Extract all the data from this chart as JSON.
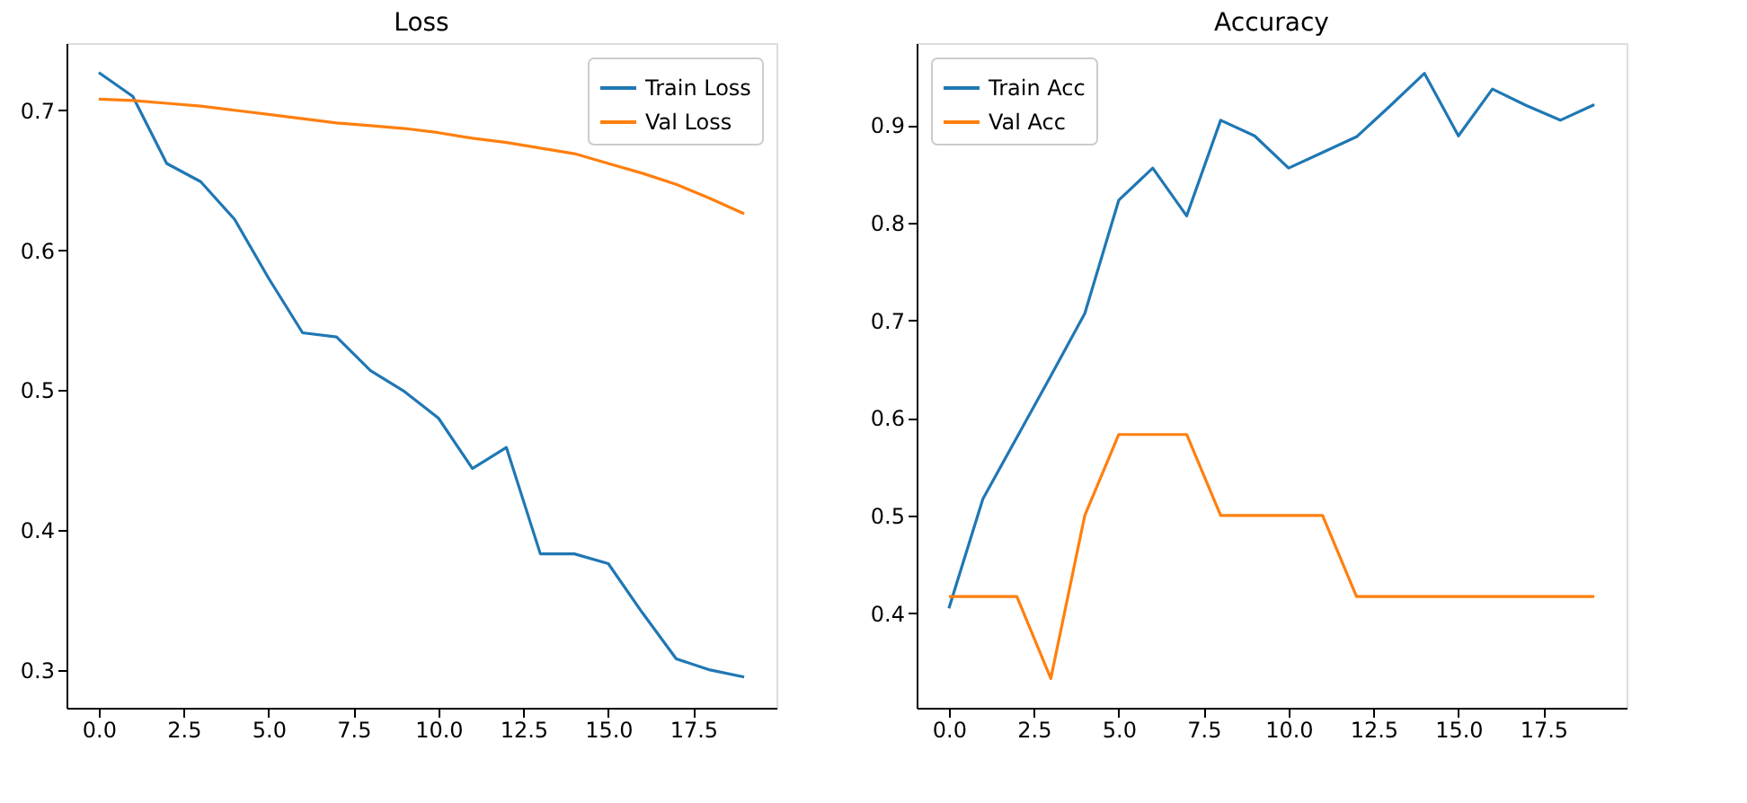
{
  "chart_data": [
    {
      "type": "line",
      "title": "Loss",
      "x": [
        0,
        1,
        2,
        3,
        4,
        5,
        6,
        7,
        8,
        9,
        10,
        11,
        12,
        13,
        14,
        15,
        16,
        17,
        18,
        19
      ],
      "series": [
        {
          "name": "Train Loss",
          "color": "#1f77b4",
          "values": [
            0.727,
            0.71,
            0.662,
            0.649,
            0.622,
            0.58,
            0.541,
            0.538,
            0.514,
            0.499,
            0.48,
            0.444,
            0.459,
            0.383,
            0.383,
            0.376,
            0.341,
            0.308,
            0.3,
            0.295
          ]
        },
        {
          "name": "Val Loss",
          "color": "#ff7f0e",
          "values": [
            0.708,
            0.707,
            0.705,
            0.703,
            0.7,
            0.697,
            0.694,
            0.691,
            0.689,
            0.687,
            0.684,
            0.68,
            0.677,
            0.673,
            0.669,
            0.662,
            0.655,
            0.647,
            0.637,
            0.626
          ]
        }
      ],
      "xlim": [
        -0.95,
        19.95
      ],
      "xticks": [
        {
          "value": 0,
          "label": "0.0"
        },
        2.5,
        {
          "value": 5,
          "label": "5.0"
        },
        7.5,
        {
          "value": 10,
          "label": "10.0"
        },
        12.5,
        {
          "value": 15,
          "label": "15.0"
        },
        17.5
      ],
      "ylim": [
        0.273,
        0.748
      ],
      "yticks": [
        0.3,
        0.4,
        0.5,
        0.6,
        0.7
      ],
      "grid": false,
      "legend": "top right"
    },
    {
      "type": "line",
      "title": "Accuracy",
      "x": [
        0,
        1,
        2,
        3,
        4,
        5,
        6,
        7,
        8,
        9,
        10,
        11,
        12,
        13,
        14,
        15,
        16,
        17,
        18,
        19
      ],
      "series": [
        {
          "name": "Train Acc",
          "color": "#1f77b4",
          "values": [
            0.405,
            0.517,
            0.58,
            0.643,
            0.707,
            0.823,
            0.856,
            0.807,
            0.905,
            0.889,
            0.856,
            0.872,
            0.888,
            0.92,
            0.953,
            0.889,
            0.937,
            0.92,
            0.905,
            0.921
          ]
        },
        {
          "name": "Val Acc",
          "color": "#ff7f0e",
          "values": [
            0.417,
            0.417,
            0.417,
            0.333,
            0.5,
            0.583,
            0.583,
            0.583,
            0.5,
            0.5,
            0.5,
            0.5,
            0.417,
            0.417,
            0.417,
            0.417,
            0.417,
            0.417,
            0.417,
            0.417
          ]
        }
      ],
      "xlim": [
        -0.95,
        19.95
      ],
      "xticks": [
        {
          "value": 0,
          "label": "0.0"
        },
        2.5,
        {
          "value": 5,
          "label": "5.0"
        },
        7.5,
        {
          "value": 10,
          "label": "10.0"
        },
        12.5,
        {
          "value": 15,
          "label": "15.0"
        },
        17.5
      ],
      "ylim": [
        0.303,
        0.984
      ],
      "yticks": [
        0.4,
        0.5,
        0.6,
        0.7,
        0.8,
        0.9
      ],
      "grid": false,
      "legend": "top left"
    }
  ]
}
